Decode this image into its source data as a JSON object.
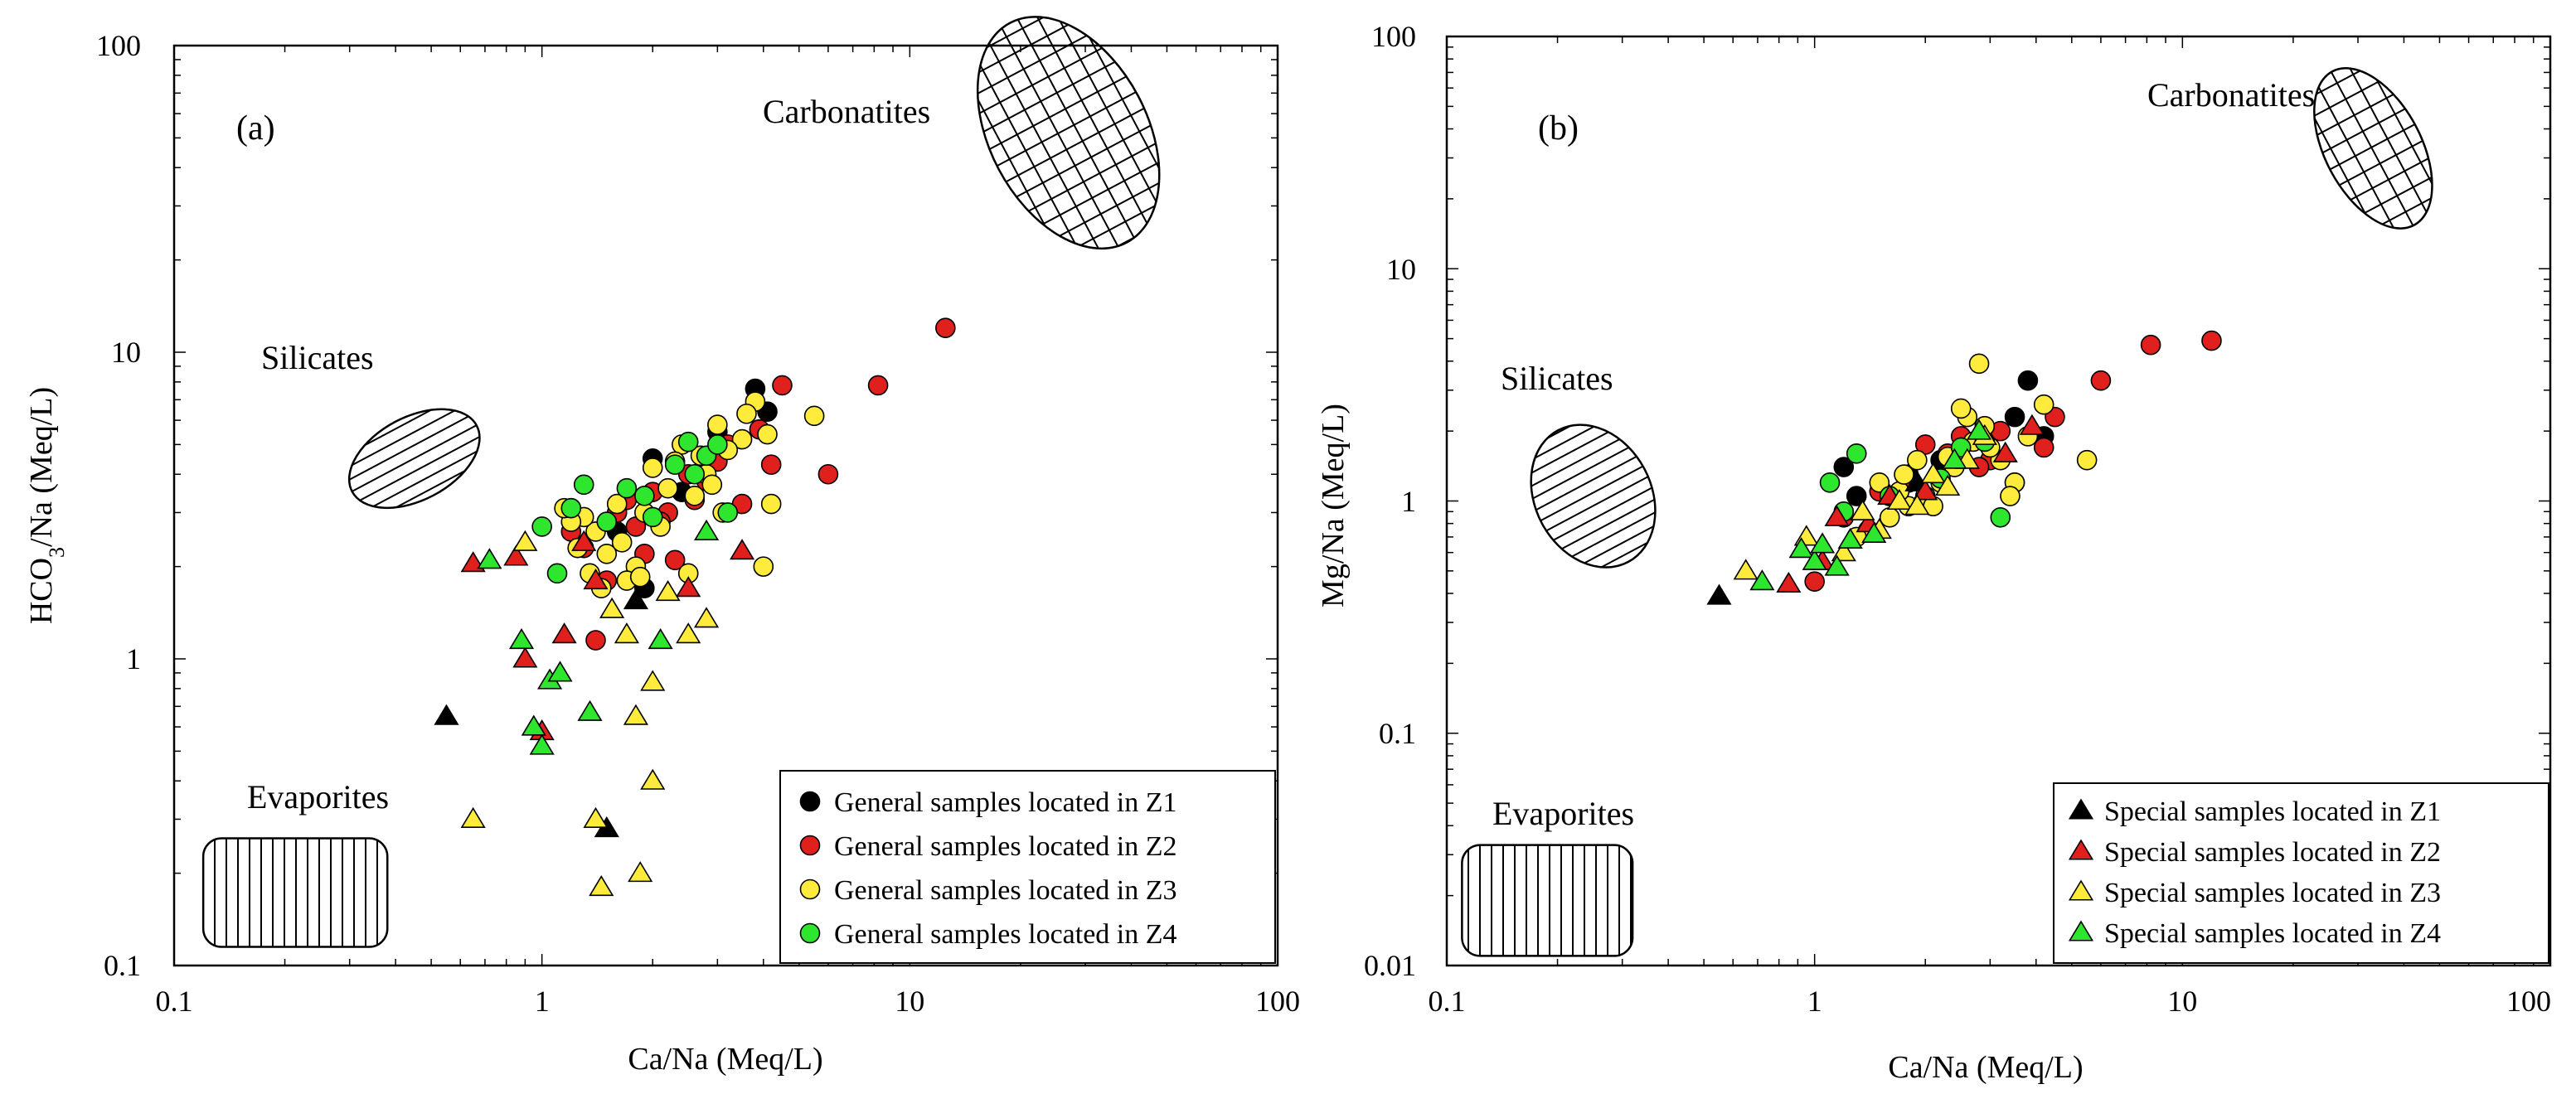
{
  "chart_data": [
    {
      "type": "scatter",
      "panel_label": "(a)",
      "xlabel": "Ca/Na (Meq/L)",
      "ylabel_main": "HCO",
      "ylabel_sub": "3",
      "ylabel_rest": "/Na (Meq/L)",
      "xscale": "log",
      "yscale": "log",
      "xlim": [
        0.1,
        100
      ],
      "ylim": [
        0.1,
        100
      ],
      "xticks": [
        "0.1",
        "1",
        "10",
        "100"
      ],
      "yticks": [
        "0.1",
        "1",
        "10",
        "100"
      ],
      "legend_position": "bottom-right",
      "regions": [
        {
          "name": "Carbonatites",
          "shape": "ellipse",
          "pattern": "crosshatch",
          "cx": 27,
          "cy": 52
        },
        {
          "name": "Silicates",
          "shape": "ellipse",
          "pattern": "horizontal",
          "cx": 0.45,
          "cy": 4.5
        },
        {
          "name": "Evaporites",
          "shape": "rounded-rect",
          "pattern": "vertical",
          "x0": 0.12,
          "x1": 0.38,
          "y0": 0.115,
          "y1": 0.26
        }
      ],
      "series": [
        {
          "name": "General samples located in Z1",
          "marker": "circle",
          "color": "#000000",
          "x": [
            1.2,
            1.6,
            2.0,
            2.4,
            3.8,
            4.1,
            1.9,
            3.0
          ],
          "y": [
            3.1,
            2.6,
            4.5,
            3.5,
            7.6,
            6.4,
            1.7,
            5.5
          ]
        },
        {
          "name": "General samples located in Z2",
          "marker": "circle",
          "color": "#e0201c",
          "x": [
            12.5,
            8.2,
            6.0,
            4.5,
            4.2,
            3.5,
            3.2,
            2.8,
            2.5,
            2.3,
            2.0,
            1.8,
            1.6,
            1.4,
            1.3,
            2.2,
            2.6,
            3.0,
            3.9,
            1.9,
            2.1,
            1.7,
            1.5,
            1.2
          ],
          "y": [
            12.0,
            7.8,
            4.0,
            7.8,
            4.3,
            3.2,
            5.0,
            3.8,
            4.0,
            2.1,
            3.5,
            2.7,
            3.0,
            1.15,
            2.3,
            3.0,
            3.3,
            4.4,
            5.6,
            2.2,
            2.8,
            3.3,
            1.8,
            2.6
          ]
        },
        {
          "name": "General samples located in Z3",
          "marker": "circle",
          "color": "#ffeb3b",
          "x": [
            5.5,
            4.2,
            4.0,
            3.8,
            3.5,
            3.2,
            3.0,
            2.8,
            2.6,
            2.5,
            2.4,
            2.2,
            2.0,
            1.9,
            1.8,
            1.7,
            1.6,
            1.5,
            1.45,
            1.4,
            1.3,
            1.25,
            1.2,
            1.15,
            2.7,
            3.1,
            2.1,
            2.3,
            1.65,
            1.85,
            3.6,
            2.9,
            4.1,
            1.35
          ],
          "y": [
            6.2,
            3.2,
            2.0,
            6.9,
            5.2,
            4.8,
            5.8,
            4.0,
            3.4,
            1.9,
            5.0,
            3.6,
            4.2,
            3.0,
            2.0,
            1.8,
            3.2,
            2.2,
            1.7,
            2.6,
            2.9,
            2.3,
            2.8,
            3.1,
            4.6,
            3.0,
            2.7,
            4.4,
            2.4,
            1.85,
            6.3,
            3.7,
            5.4,
            1.9
          ]
        },
        {
          "name": "General samples located in Z4",
          "marker": "circle",
          "color": "#2ee62e",
          "x": [
            1.0,
            1.1,
            1.3,
            1.5,
            1.7,
            2.0,
            2.3,
            2.5,
            2.8,
            3.2,
            1.2,
            1.9,
            2.6,
            3.0
          ],
          "y": [
            2.7,
            1.9,
            3.7,
            2.8,
            3.6,
            2.9,
            4.3,
            5.1,
            4.6,
            3.0,
            3.1,
            3.4,
            4.0,
            5.0
          ]
        },
        {
          "name": "Special samples located in Z1",
          "marker": "triangle",
          "color": "#000000",
          "x": [
            0.55,
            1.5,
            1.8
          ],
          "y": [
            0.65,
            0.28,
            1.55
          ]
        },
        {
          "name": "Special samples located in Z2",
          "marker": "triangle",
          "color": "#e0201c",
          "x": [
            0.65,
            0.85,
            0.9,
            1.0,
            1.15,
            1.4,
            2.5,
            3.5,
            1.3
          ],
          "y": [
            2.05,
            2.15,
            1.0,
            0.58,
            1.2,
            1.8,
            1.7,
            2.25,
            2.4
          ]
        },
        {
          "name": "Special samples located in Z3",
          "marker": "triangle",
          "color": "#ffeb3b",
          "x": [
            0.65,
            0.9,
            1.4,
            1.45,
            1.55,
            1.8,
            1.85,
            2.0,
            2.0,
            1.7,
            2.2,
            2.5,
            2.8
          ],
          "y": [
            0.3,
            2.4,
            0.3,
            0.18,
            1.45,
            0.65,
            0.2,
            0.4,
            0.84,
            1.2,
            1.65,
            1.2,
            1.35
          ]
        },
        {
          "name": "Special samples located in Z4",
          "marker": "triangle",
          "color": "#2ee62e",
          "x": [
            0.72,
            0.88,
            0.95,
            1.05,
            1.12,
            1.35,
            2.1,
            2.8,
            1.0
          ],
          "y": [
            2.1,
            1.15,
            0.6,
            0.85,
            0.9,
            0.67,
            1.15,
            2.6,
            0.52
          ]
        }
      ],
      "legend": [
        {
          "label": "General samples located in Z1",
          "marker": "circle",
          "color": "#000000"
        },
        {
          "label": "General samples located in Z2",
          "marker": "circle",
          "color": "#e0201c"
        },
        {
          "label": "General samples located in Z3",
          "marker": "circle",
          "color": "#ffeb3b"
        },
        {
          "label": "General samples located in Z4",
          "marker": "circle",
          "color": "#2ee62e"
        }
      ]
    },
    {
      "type": "scatter",
      "panel_label": "(b)",
      "xlabel": "Ca/Na (Meq/L)",
      "ylabel": "Mg/Na (Meq/L)",
      "xscale": "log",
      "yscale": "log",
      "xlim": [
        0.1,
        100
      ],
      "ylim": [
        0.01,
        100
      ],
      "xticks": [
        "0.1",
        "1",
        "10",
        "100"
      ],
      "yticks": [
        "0.01",
        "0.1",
        "1",
        "10",
        "100"
      ],
      "legend_position": "bottom-right",
      "regions": [
        {
          "name": "Carbonatites",
          "shape": "ellipse",
          "pattern": "crosshatch",
          "cx": 33,
          "cy": 33
        },
        {
          "name": "Silicates",
          "shape": "ellipse",
          "pattern": "horizontal",
          "cx": 0.25,
          "cy": 1.05
        },
        {
          "name": "Evaporites",
          "shape": "rounded-rect",
          "pattern": "vertical",
          "x0": 0.11,
          "x1": 0.32,
          "y0": 0.011,
          "y1": 0.033
        }
      ],
      "series": [
        {
          "name": "General samples located in Z1",
          "marker": "circle",
          "color": "#000000",
          "x": [
            1.2,
            1.3,
            1.8,
            3.5,
            3.8,
            4.2,
            2.2
          ],
          "y": [
            1.4,
            1.05,
            1.3,
            2.3,
            3.3,
            1.9,
            1.5
          ]
        },
        {
          "name": "General samples located in Z2",
          "marker": "circle",
          "color": "#e0201c",
          "x": [
            12.0,
            8.2,
            6.0,
            4.5,
            4.2,
            3.5,
            3.0,
            2.5,
            2.0,
            1.8,
            1.5,
            1.2,
            1.0,
            2.8,
            3.2,
            2.3
          ],
          "y": [
            4.9,
            4.7,
            3.3,
            2.3,
            1.7,
            1.2,
            1.5,
            1.9,
            1.75,
            1.2,
            1.1,
            0.85,
            0.45,
            1.4,
            2.0,
            1.6
          ]
        },
        {
          "name": "General samples located in Z3",
          "marker": "circle",
          "color": "#ffeb3b",
          "x": [
            5.5,
            4.2,
            3.8,
            3.5,
            3.2,
            3.0,
            2.8,
            2.6,
            2.5,
            2.4,
            2.2,
            2.0,
            1.9,
            1.8,
            1.7,
            1.6,
            1.5,
            1.4,
            1.3,
            2.1,
            2.7,
            3.4,
            2.3,
            1.75,
            2.9
          ],
          "y": [
            1.5,
            2.6,
            1.9,
            1.2,
            1.5,
            1.7,
            3.9,
            2.3,
            2.5,
            1.4,
            1.2,
            1.05,
            1.5,
            0.95,
            1.1,
            0.85,
            1.2,
            0.75,
            0.7,
            0.95,
            1.8,
            1.05,
            1.55,
            1.3,
            2.1
          ]
        },
        {
          "name": "General samples located in Z4",
          "marker": "circle",
          "color": "#2ee62e",
          "x": [
            1.1,
            1.3,
            1.2,
            2.2,
            2.5,
            2.9,
            3.2,
            1.6
          ],
          "y": [
            1.2,
            1.6,
            0.9,
            1.25,
            1.7,
            1.8,
            0.85,
            1.05
          ]
        },
        {
          "name": "Special samples located in Z1",
          "marker": "triangle",
          "color": "#000000",
          "x": [
            0.55,
            1.9
          ],
          "y": [
            0.39,
            1.2
          ]
        },
        {
          "name": "Special samples located in Z2",
          "marker": "triangle",
          "color": "#e0201c",
          "x": [
            0.85,
            1.05,
            1.15,
            1.4,
            1.6,
            2.0,
            3.3,
            3.9
          ],
          "y": [
            0.44,
            0.55,
            0.85,
            0.8,
            1.05,
            1.1,
            1.6,
            2.1
          ]
        },
        {
          "name": "Special samples located in Z3",
          "marker": "triangle",
          "color": "#ffeb3b",
          "x": [
            0.65,
            0.95,
            1.2,
            1.35,
            1.5,
            1.7,
            1.9,
            2.1,
            2.3,
            2.6,
            2.9
          ],
          "y": [
            0.5,
            0.7,
            0.6,
            0.9,
            0.75,
            1.0,
            0.95,
            1.3,
            1.15,
            1.5,
            1.9
          ]
        },
        {
          "name": "Special samples located in Z4",
          "marker": "triangle",
          "color": "#2ee62e",
          "x": [
            0.72,
            0.92,
            1.0,
            1.05,
            1.15,
            1.25,
            1.45,
            2.4,
            2.8
          ],
          "y": [
            0.45,
            0.62,
            0.55,
            0.65,
            0.52,
            0.68,
            0.72,
            1.5,
            2.0
          ]
        }
      ],
      "legend": [
        {
          "label": "Special samples located in Z1",
          "marker": "triangle",
          "color": "#000000"
        },
        {
          "label": "Special samples located in Z2",
          "marker": "triangle",
          "color": "#e0201c"
        },
        {
          "label": "Special samples located in Z3",
          "marker": "triangle",
          "color": "#ffeb3b"
        },
        {
          "label": "Special samples located in Z4",
          "marker": "triangle",
          "color": "#2ee62e"
        }
      ]
    }
  ]
}
